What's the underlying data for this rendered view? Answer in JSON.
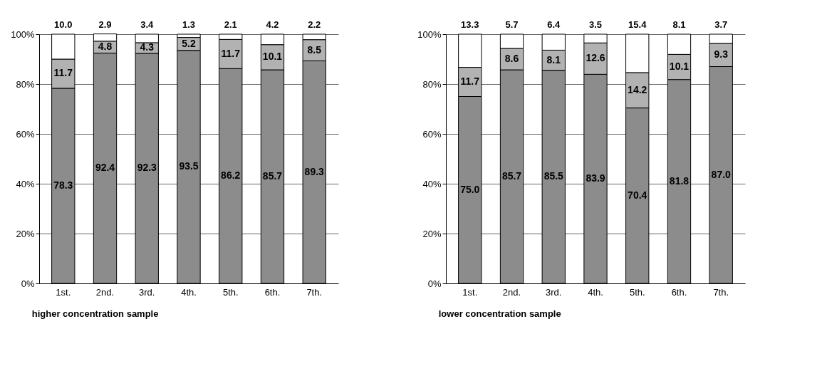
{
  "chart_data": [
    {
      "type": "bar",
      "title": "higher concentration sample",
      "stacked": true,
      "categories": [
        "1st.",
        "2nd.",
        "3rd.",
        "4th.",
        "5th.",
        "6th.",
        "7th."
      ],
      "series": [
        {
          "color": "#8c8c8c",
          "values": [
            78.3,
            92.4,
            92.3,
            93.5,
            86.2,
            85.7,
            89.3
          ],
          "value_labels": [
            "78.3",
            "92.4",
            "92.3",
            "93.5",
            "86.2",
            "85.7",
            "89.3"
          ]
        },
        {
          "color": "#b2b2b2",
          "values": [
            11.7,
            4.8,
            4.3,
            5.2,
            11.7,
            10.1,
            8.5
          ],
          "value_labels": [
            "11.7",
            "4.8",
            "4.3",
            "5.2",
            "11.7",
            "10.1",
            "8.5"
          ]
        },
        {
          "color": "#ffffff",
          "values": [
            10.0,
            2.9,
            3.4,
            1.3,
            2.1,
            4.2,
            2.2
          ],
          "value_labels": [
            "10.0",
            "2.9",
            "3.4",
            "1.3",
            "2.1",
            "4.2",
            "2.2"
          ]
        }
      ],
      "ylim": [
        0,
        100
      ],
      "yticks": [
        {
          "value": 0,
          "label": "0%"
        },
        {
          "value": 20,
          "label": "20%"
        },
        {
          "value": 40,
          "label": "40%"
        },
        {
          "value": 60,
          "label": "60%"
        },
        {
          "value": 80,
          "label": "80%"
        },
        {
          "value": 100,
          "label": "100%"
        }
      ],
      "grid": "y",
      "legend": false
    },
    {
      "type": "bar",
      "title": "lower concentration sample",
      "stacked": true,
      "categories": [
        "1st.",
        "2nd.",
        "3rd.",
        "4th.",
        "5th.",
        "6th.",
        "7th."
      ],
      "series": [
        {
          "color": "#8c8c8c",
          "values": [
            75.0,
            85.7,
            85.5,
            83.9,
            70.4,
            81.8,
            87.0
          ],
          "value_labels": [
            "75.0",
            "85.7",
            "85.5",
            "83.9",
            "70.4",
            "81.8",
            "87.0"
          ]
        },
        {
          "color": "#b2b2b2",
          "values": [
            11.7,
            8.6,
            8.1,
            12.6,
            14.2,
            10.1,
            9.3
          ],
          "value_labels": [
            "11.7",
            "8.6",
            "8.1",
            "12.6",
            "14.2",
            "10.1",
            "9.3"
          ]
        },
        {
          "color": "#ffffff",
          "values": [
            13.3,
            5.7,
            6.4,
            3.5,
            15.4,
            8.1,
            3.7
          ],
          "value_labels": [
            "13.3",
            "5.7",
            "6.4",
            "3.5",
            "15.4",
            "8.1",
            "3.7"
          ]
        }
      ],
      "ylim": [
        0,
        100
      ],
      "yticks": [
        {
          "value": 0,
          "label": "0%"
        },
        {
          "value": 20,
          "label": "20%"
        },
        {
          "value": 40,
          "label": "40%"
        },
        {
          "value": 60,
          "label": "60%"
        },
        {
          "value": 80,
          "label": "80%"
        },
        {
          "value": 100,
          "label": "100%"
        }
      ],
      "grid": "y",
      "legend": false
    }
  ]
}
